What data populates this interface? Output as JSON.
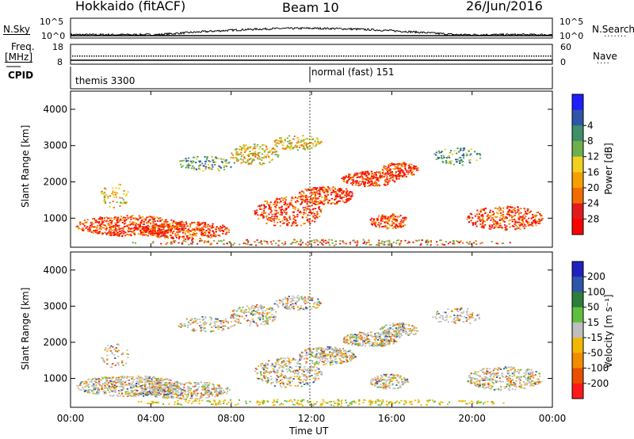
{
  "header": {
    "station": "Hokkaido (fitACF)",
    "beam": "Beam 10",
    "date": "26/Jun/2016"
  },
  "top_panel": {
    "left_label": "N.Sky",
    "right_label": "N.Search",
    "left_ticks": [
      "10^5",
      "10^0"
    ],
    "right_ticks": [
      "10^5",
      "10^0"
    ]
  },
  "freq_panel": {
    "left_label_1": "Freq.",
    "left_label_2": "[MHz]",
    "right_label": "Nave",
    "left_ticks": [
      "18",
      "8"
    ],
    "right_ticks": [
      "60",
      "0"
    ]
  },
  "cpid_panel": {
    "label": "CPID",
    "mode_1": "themis 3300",
    "mode_2": "normal (fast) 151"
  },
  "chart_data": [
    {
      "type": "heatmap",
      "quantity": "Power",
      "ylabel": "Slant Range [km]",
      "xlabel": "Time UT",
      "yticks": [
        "1000",
        "2000",
        "3000",
        "4000"
      ],
      "ylim": [
        200,
        4500
      ],
      "xticks": [
        "00:00",
        "04:00",
        "08:00",
        "12:00",
        "16:00",
        "20:00",
        "00:00"
      ],
      "colorbar_label": "Power [dB]",
      "colorbar_ticks": [
        "4",
        "8",
        "12",
        "16",
        "20",
        "24",
        "28"
      ],
      "colorbar_colors": [
        "#1d1dff",
        "#2f55a8",
        "#3f8f6a",
        "#6fb04a",
        "#f0d020",
        "#f5a000",
        "#f36c00",
        "#e31a1c",
        "#ff0000"
      ]
    },
    {
      "type": "heatmap",
      "quantity": "Velocity",
      "ylabel": "Slant Range [km]",
      "xlabel": "Time UT",
      "yticks": [
        "1000",
        "2000",
        "3000",
        "4000"
      ],
      "ylim": [
        200,
        4500
      ],
      "xticks": [
        "00:00",
        "04:00",
        "08:00",
        "12:00",
        "16:00",
        "20:00",
        "00:00"
      ],
      "colorbar_label": "Velocity [m s⁻¹]",
      "colorbar_ticks": [
        "200",
        "100",
        "50",
        "15",
        "-15",
        "-50",
        "-100",
        "-200"
      ],
      "colorbar_colors": [
        "#2020c0",
        "#2f55a8",
        "#2e7d3a",
        "#5fbf3f",
        "#bebebe",
        "#f2b800",
        "#f28c00",
        "#e85000",
        "#ff1a1a"
      ]
    }
  ]
}
